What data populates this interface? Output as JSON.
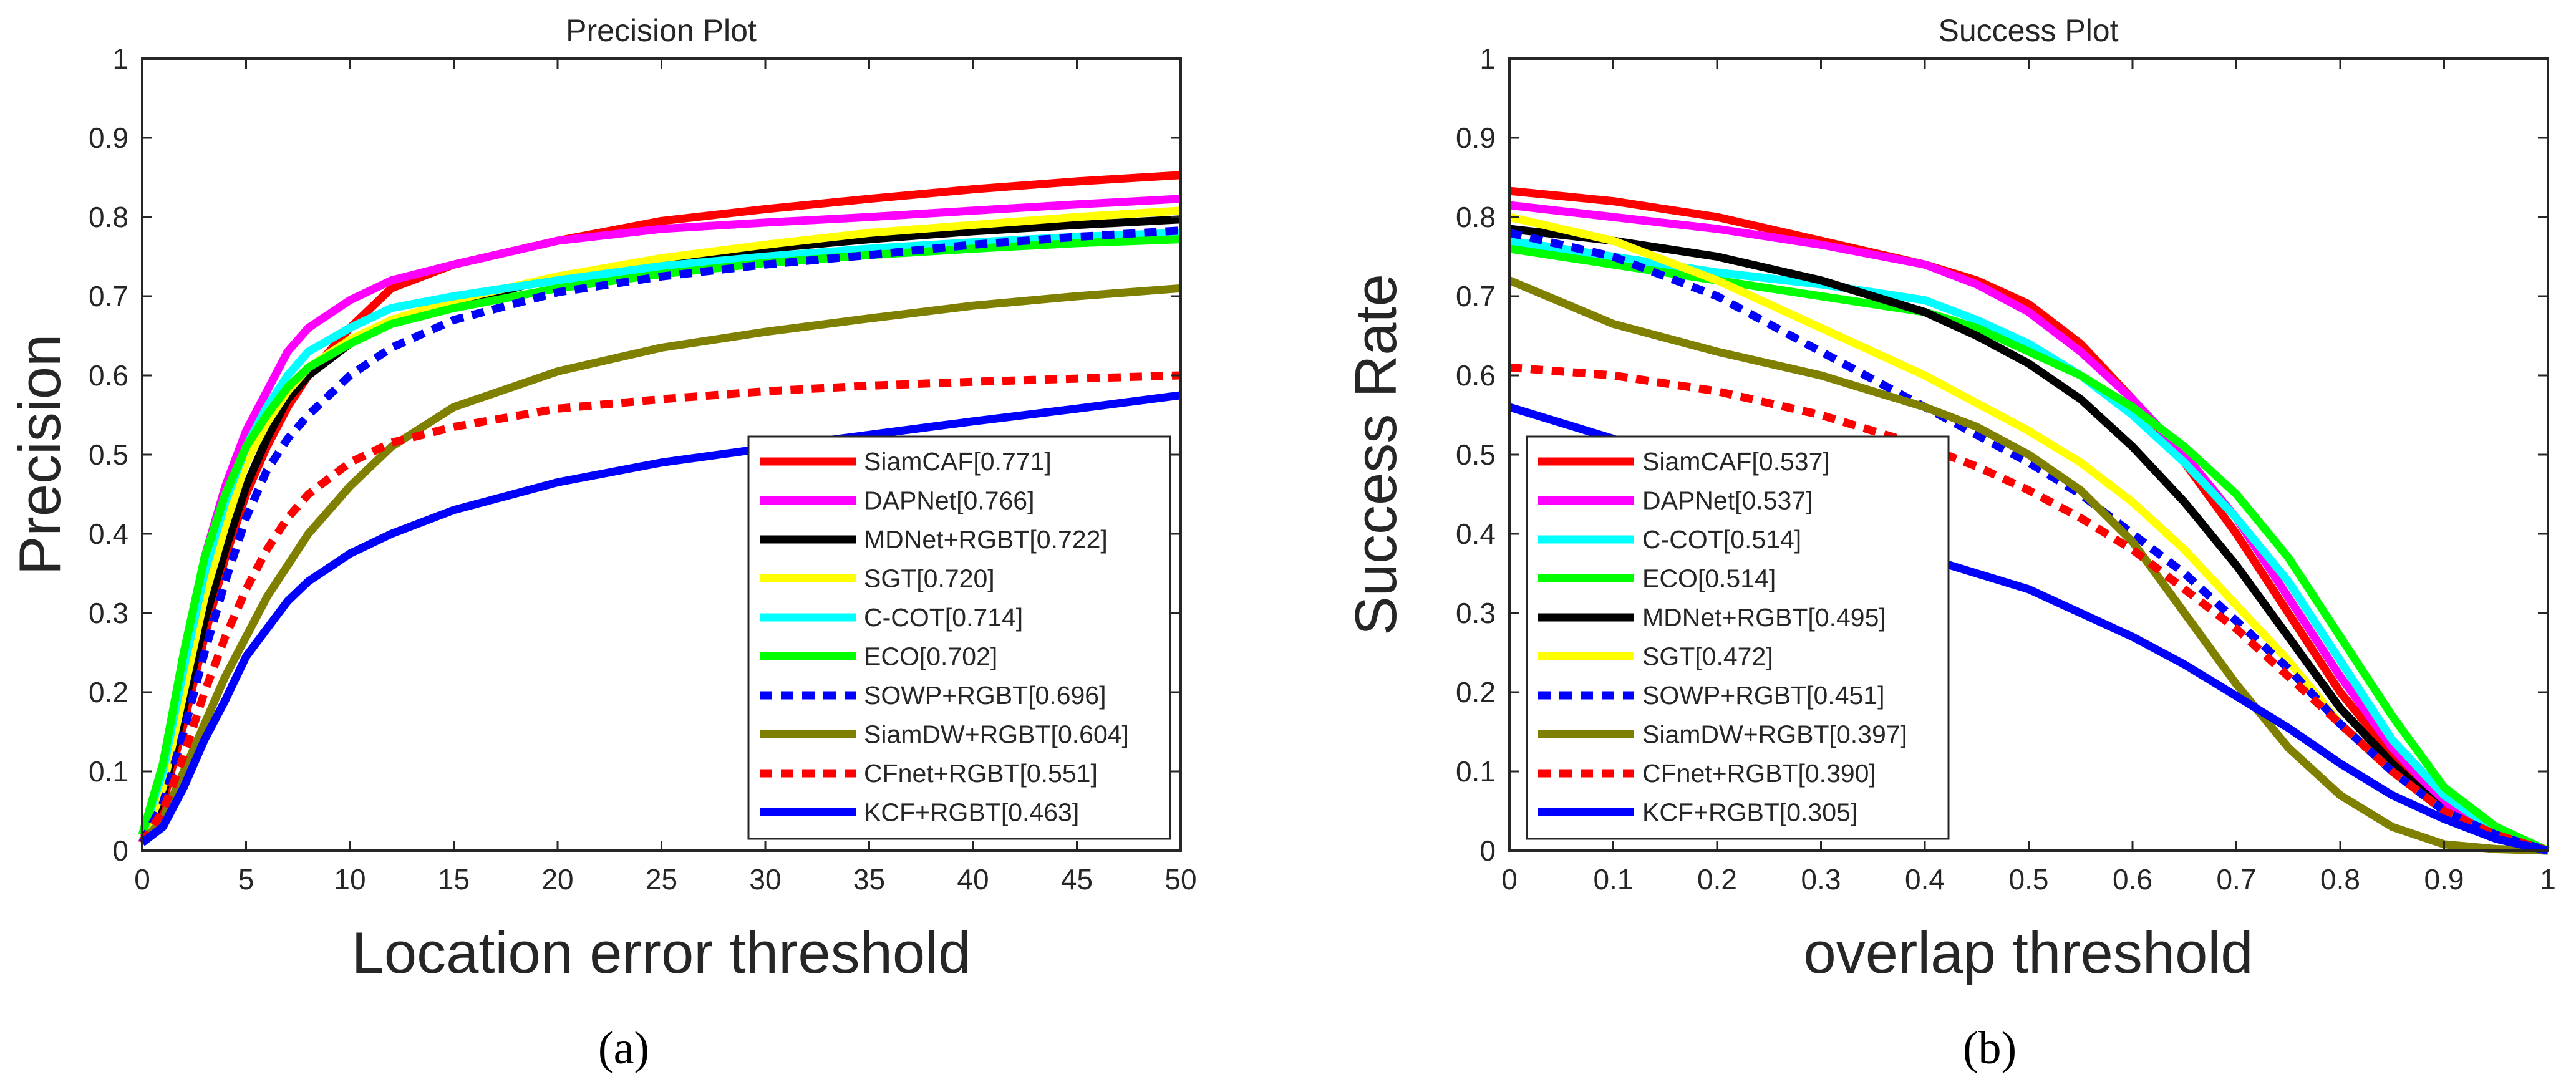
{
  "chart_data": [
    {
      "type": "line",
      "title": "Precision Plot",
      "xlabel": "Location error threshold",
      "ylabel": "Precision",
      "caption": "(a)",
      "xlim": [
        0,
        50
      ],
      "ylim": [
        0,
        1
      ],
      "xticks": [
        0,
        5,
        10,
        15,
        20,
        25,
        30,
        35,
        40,
        45,
        50
      ],
      "yticks": [
        0,
        0.1,
        0.2,
        0.3,
        0.4,
        0.5,
        0.6,
        0.7,
        0.8,
        0.9,
        1
      ],
      "x": [
        0,
        1,
        2,
        3,
        4,
        5,
        6,
        7,
        8,
        10,
        12,
        15,
        20,
        25,
        30,
        35,
        40,
        45,
        50
      ],
      "legend_position": "bottom-right",
      "series": [
        {
          "name": "SiamCAF[0.771]",
          "color": "#ff0000",
          "dash": "solid",
          "values": [
            0.01,
            0.06,
            0.16,
            0.27,
            0.37,
            0.45,
            0.51,
            0.56,
            0.6,
            0.66,
            0.71,
            0.74,
            0.77,
            0.795,
            0.81,
            0.823,
            0.835,
            0.845,
            0.853
          ]
        },
        {
          "name": "DAPNet[0.766]",
          "color": "#ff00ff",
          "dash": "solid",
          "values": [
            0.01,
            0.1,
            0.24,
            0.37,
            0.46,
            0.53,
            0.58,
            0.63,
            0.66,
            0.695,
            0.72,
            0.74,
            0.77,
            0.785,
            0.793,
            0.8,
            0.808,
            0.816,
            0.823
          ]
        },
        {
          "name": "MDNet+RGBT[0.722]",
          "color": "#000000",
          "dash": "solid",
          "values": [
            0.01,
            0.07,
            0.18,
            0.29,
            0.38,
            0.46,
            0.52,
            0.57,
            0.6,
            0.64,
            0.67,
            0.69,
            0.725,
            0.745,
            0.76,
            0.772,
            0.782,
            0.79,
            0.797
          ]
        },
        {
          "name": "SGT[0.720]",
          "color": "#ffff00",
          "dash": "solid",
          "values": [
            0.01,
            0.08,
            0.2,
            0.32,
            0.41,
            0.49,
            0.54,
            0.58,
            0.61,
            0.645,
            0.67,
            0.695,
            0.725,
            0.748,
            0.765,
            0.78,
            0.79,
            0.8,
            0.808
          ]
        },
        {
          "name": "C-COT[0.714]",
          "color": "#00ffff",
          "dash": "solid",
          "values": [
            0.02,
            0.1,
            0.23,
            0.35,
            0.44,
            0.51,
            0.56,
            0.6,
            0.63,
            0.66,
            0.685,
            0.7,
            0.72,
            0.738,
            0.75,
            0.76,
            0.768,
            0.775,
            0.78
          ]
        },
        {
          "name": "ECO[0.702]",
          "color": "#00ff00",
          "dash": "solid",
          "values": [
            0.02,
            0.11,
            0.25,
            0.37,
            0.45,
            0.51,
            0.55,
            0.585,
            0.61,
            0.64,
            0.665,
            0.685,
            0.71,
            0.728,
            0.742,
            0.752,
            0.76,
            0.767,
            0.772
          ]
        },
        {
          "name": "SOWP+RGBT[0.696]",
          "color": "#0000ff",
          "dash": "dot",
          "values": [
            0.01,
            0.06,
            0.15,
            0.25,
            0.34,
            0.42,
            0.48,
            0.52,
            0.55,
            0.6,
            0.635,
            0.67,
            0.705,
            0.725,
            0.74,
            0.752,
            0.765,
            0.775,
            0.783
          ]
        },
        {
          "name": "SiamDW+RGBT[0.604]",
          "color": "#808000",
          "dash": "solid",
          "values": [
            0.01,
            0.04,
            0.1,
            0.16,
            0.22,
            0.27,
            0.32,
            0.36,
            0.4,
            0.46,
            0.51,
            0.56,
            0.605,
            0.635,
            0.655,
            0.672,
            0.688,
            0.7,
            0.71
          ]
        },
        {
          "name": "CFnet+RGBT[0.551]",
          "color": "#ff0000",
          "dash": "dot",
          "values": [
            0.01,
            0.05,
            0.12,
            0.2,
            0.27,
            0.33,
            0.38,
            0.42,
            0.45,
            0.49,
            0.515,
            0.535,
            0.558,
            0.57,
            0.58,
            0.587,
            0.592,
            0.596,
            0.6
          ]
        },
        {
          "name": "KCF+RGBT[0.463]",
          "color": "#0000ff",
          "dash": "solid",
          "values": [
            0.01,
            0.03,
            0.08,
            0.14,
            0.19,
            0.245,
            0.28,
            0.315,
            0.34,
            0.375,
            0.4,
            0.43,
            0.465,
            0.49,
            0.508,
            0.525,
            0.542,
            0.558,
            0.575
          ]
        }
      ]
    },
    {
      "type": "line",
      "title": "Success Plot",
      "xlabel": "overlap threshold",
      "ylabel": "Success Rate",
      "caption": "(b)",
      "xlim": [
        0,
        1
      ],
      "ylim": [
        0,
        1
      ],
      "xticks": [
        0,
        0.1,
        0.2,
        0.3,
        0.4,
        0.5,
        0.6,
        0.7,
        0.8,
        0.9,
        1
      ],
      "yticks": [
        0,
        0.1,
        0.2,
        0.3,
        0.4,
        0.5,
        0.6,
        0.7,
        0.8,
        0.9,
        1
      ],
      "x": [
        0,
        0.1,
        0.2,
        0.3,
        0.4,
        0.45,
        0.5,
        0.55,
        0.6,
        0.65,
        0.7,
        0.75,
        0.8,
        0.85,
        0.9,
        0.95,
        1
      ],
      "legend_position": "bottom-left",
      "series": [
        {
          "name": "SiamCAF[0.537]",
          "color": "#ff0000",
          "dash": "solid",
          "values": [
            0.833,
            0.82,
            0.8,
            0.77,
            0.74,
            0.72,
            0.69,
            0.64,
            0.57,
            0.49,
            0.4,
            0.3,
            0.2,
            0.12,
            0.06,
            0.02,
            0.0
          ]
        },
        {
          "name": "DAPNet[0.537]",
          "color": "#ff00ff",
          "dash": "solid",
          "values": [
            0.815,
            0.8,
            0.785,
            0.765,
            0.74,
            0.715,
            0.68,
            0.63,
            0.57,
            0.5,
            0.42,
            0.32,
            0.22,
            0.13,
            0.06,
            0.02,
            0.0
          ]
        },
        {
          "name": "C-COT[0.514]",
          "color": "#00ffff",
          "dash": "solid",
          "values": [
            0.77,
            0.75,
            0.73,
            0.715,
            0.695,
            0.67,
            0.64,
            0.6,
            0.55,
            0.49,
            0.42,
            0.34,
            0.24,
            0.14,
            0.07,
            0.025,
            0.0
          ]
        },
        {
          "name": "ECO[0.514]",
          "color": "#00ff00",
          "dash": "solid",
          "values": [
            0.76,
            0.74,
            0.72,
            0.7,
            0.68,
            0.66,
            0.63,
            0.6,
            0.56,
            0.51,
            0.45,
            0.37,
            0.27,
            0.17,
            0.08,
            0.03,
            0.0
          ]
        },
        {
          "name": "MDNet+RGBT[0.495]",
          "color": "#000000",
          "dash": "solid",
          "values": [
            0.785,
            0.77,
            0.75,
            0.72,
            0.68,
            0.65,
            0.615,
            0.57,
            0.51,
            0.44,
            0.36,
            0.27,
            0.18,
            0.11,
            0.05,
            0.015,
            0.0
          ]
        },
        {
          "name": "SGT[0.472]",
          "color": "#ffff00",
          "dash": "solid",
          "values": [
            0.8,
            0.77,
            0.72,
            0.66,
            0.6,
            0.565,
            0.53,
            0.49,
            0.44,
            0.38,
            0.31,
            0.24,
            0.16,
            0.1,
            0.05,
            0.015,
            0.0
          ]
        },
        {
          "name": "SOWP+RGBT[0.451]",
          "color": "#0000ff",
          "dash": "dot",
          "values": [
            0.78,
            0.75,
            0.7,
            0.63,
            0.56,
            0.525,
            0.49,
            0.45,
            0.4,
            0.35,
            0.29,
            0.23,
            0.16,
            0.1,
            0.05,
            0.02,
            0.0
          ]
        },
        {
          "name": "SiamDW+RGBT[0.397]",
          "color": "#808000",
          "dash": "solid",
          "values": [
            0.72,
            0.665,
            0.63,
            0.6,
            0.56,
            0.535,
            0.5,
            0.455,
            0.39,
            0.3,
            0.21,
            0.13,
            0.07,
            0.03,
            0.008,
            0.002,
            0.0
          ]
        },
        {
          "name": "CFnet+RGBT[0.390]",
          "color": "#ff0000",
          "dash": "dot",
          "values": [
            0.61,
            0.6,
            0.58,
            0.55,
            0.51,
            0.485,
            0.455,
            0.42,
            0.38,
            0.33,
            0.28,
            0.22,
            0.16,
            0.1,
            0.05,
            0.02,
            0.0
          ]
        },
        {
          "name": "KCF+RGBT[0.305]",
          "color": "#0000ff",
          "dash": "solid",
          "values": [
            0.56,
            0.52,
            0.47,
            0.42,
            0.37,
            0.35,
            0.33,
            0.3,
            0.27,
            0.235,
            0.195,
            0.155,
            0.11,
            0.07,
            0.04,
            0.015,
            0.0
          ]
        }
      ]
    }
  ]
}
